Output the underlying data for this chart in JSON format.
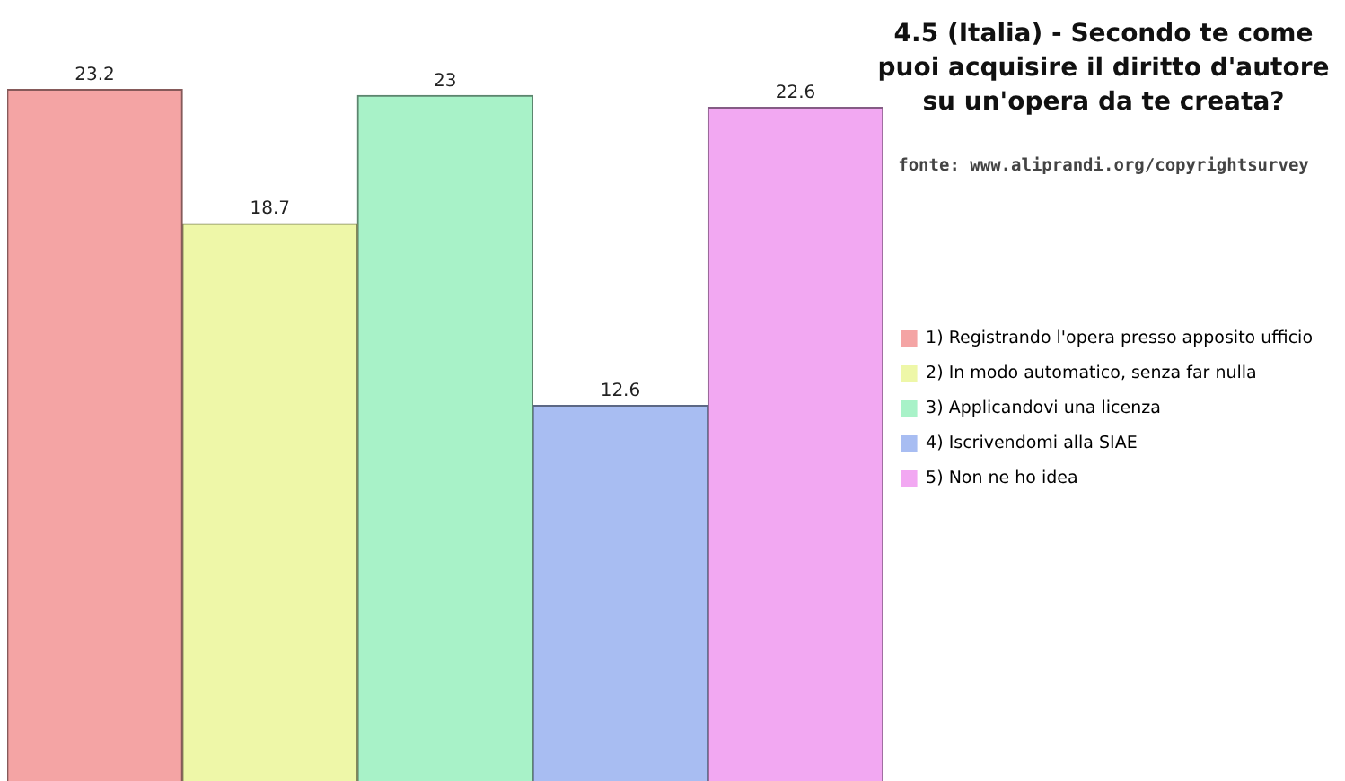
{
  "chart_data": {
    "type": "bar",
    "title": "4.5 (Italia) - Secondo te come puoi acquisire il diritto d'autore su un'opera da te creata?",
    "annotations": [
      "fonte: www.aliprandi.org/copyrightsurvey"
    ],
    "categories": [
      null
    ],
    "series": [
      {
        "name": "1) Registrando l'opera presso apposito ufficio",
        "color": "#f4a4a4",
        "values": [
          23.2
        ]
      },
      {
        "name": "2) In modo automatico, senza far nulla",
        "color": "#eef7a8",
        "values": [
          18.7
        ]
      },
      {
        "name": "3) Applicandovi una licenza",
        "color": "#a8f2c8",
        "values": [
          23
        ]
      },
      {
        "name": "4) Iscrivendomi alla SIAE",
        "color": "#a8bdf2",
        "values": [
          12.6
        ]
      },
      {
        "name": "5) Non ne ho idea",
        "color": "#f2a8f2",
        "values": [
          22.6
        ]
      }
    ],
    "data_labels": true,
    "legend": "right"
  }
}
